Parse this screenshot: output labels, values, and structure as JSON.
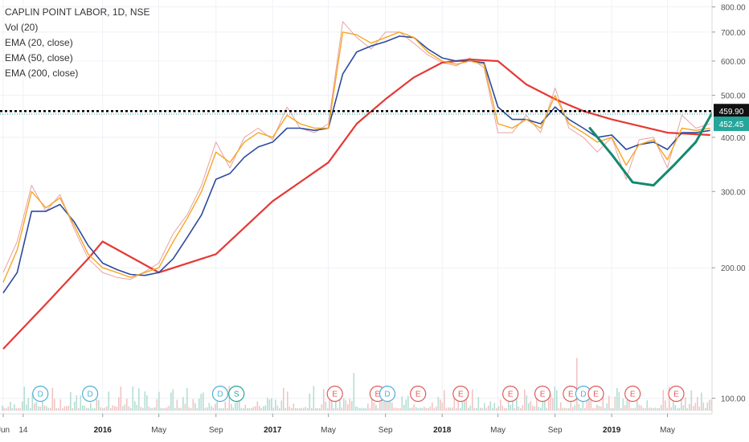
{
  "legend": {
    "title": "CAPLIN POINT LABOR, 1D, NSE",
    "items": [
      "Vol (20)",
      "EMA (20, close)",
      "EMA (50, close)",
      "EMA (200, close)"
    ]
  },
  "colors": {
    "price": "#e8a3a3",
    "ema20": "#f5a623",
    "ema50": "#2c4a9e",
    "ema200": "#e53935",
    "cup": "#14896e",
    "grid": "#eef1f6",
    "volume": "#f1c4c4",
    "volume_up": "#b6ddd3",
    "resistance": "#000000",
    "last_price": "#26a69a",
    "d_marker": "#4fb0d8",
    "s_marker": "#26a69a",
    "e_marker": "#e05a5a"
  },
  "chart_data": {
    "type": "line",
    "y_scale": "log",
    "ylim": [
      92,
      830
    ],
    "y_ticks": [
      "800.00",
      "700.00",
      "600.00",
      "500.00",
      "400.00",
      "300.00",
      "200.00",
      "100.00"
    ],
    "y_tick_values": [
      800,
      700,
      600,
      500,
      400,
      300,
      200,
      100
    ],
    "x_labels": [
      "Jun",
      "14",
      "2016",
      "May",
      "Sep",
      "2017",
      "May",
      "Sep",
      "2018",
      "May",
      "Sep",
      "2019",
      "May"
    ],
    "x_label_dates": [
      "2015-06-01",
      "2015-07-14",
      "2016-01-01",
      "2016-05-01",
      "2016-09-01",
      "2017-01-01",
      "2017-05-01",
      "2017-09-01",
      "2018-01-01",
      "2018-05-01",
      "2018-09-01",
      "2019-01-01",
      "2019-05-01"
    ],
    "x_bold": [
      false,
      false,
      true,
      false,
      false,
      true,
      false,
      false,
      true,
      false,
      false,
      true,
      false
    ],
    "x_range": [
      "2015-05-25",
      "2019-08-05"
    ],
    "resistance_level": 459.9,
    "last_price": 452.45,
    "resistance_label": "459.90",
    "last_price_label": "452.45",
    "series": [
      {
        "name": "EMA (20, close)",
        "key": "ema20",
        "x": [
          "2015-06-01",
          "2015-07-01",
          "2015-08-01",
          "2015-09-01",
          "2015-10-01",
          "2015-11-01",
          "2015-12-01",
          "2016-01-01",
          "2016-02-01",
          "2016-03-01",
          "2016-04-01",
          "2016-05-01",
          "2016-06-01",
          "2016-07-01",
          "2016-08-01",
          "2016-09-01",
          "2016-10-01",
          "2016-11-01",
          "2016-12-01",
          "2017-01-01",
          "2017-02-01",
          "2017-03-01",
          "2017-04-01",
          "2017-05-01",
          "2017-06-01",
          "2017-07-01",
          "2017-08-01",
          "2017-09-01",
          "2017-10-01",
          "2017-11-01",
          "2017-12-01",
          "2018-01-01",
          "2018-02-01",
          "2018-03-01",
          "2018-04-01",
          "2018-05-01",
          "2018-06-01",
          "2018-07-01",
          "2018-08-01",
          "2018-09-01",
          "2018-10-01",
          "2018-11-01",
          "2018-12-01",
          "2019-01-01",
          "2019-02-01",
          "2019-03-01",
          "2019-04-01",
          "2019-05-01",
          "2019-06-01",
          "2019-07-01",
          "2019-08-01"
        ],
        "y": [
          185,
          220,
          300,
          275,
          290,
          250,
          215,
          200,
          195,
          190,
          195,
          200,
          230,
          260,
          300,
          370,
          350,
          390,
          410,
          400,
          450,
          430,
          420,
          420,
          700,
          690,
          660,
          680,
          700,
          680,
          630,
          600,
          590,
          600,
          590,
          430,
          420,
          440,
          420,
          500,
          430,
          410,
          390,
          400,
          345,
          385,
          395,
          355,
          420,
          415,
          420
        ]
      },
      {
        "name": "EMA (50, close)",
        "key": "ema50",
        "x": [
          "2015-06-01",
          "2015-07-01",
          "2015-08-01",
          "2015-09-01",
          "2015-10-01",
          "2015-11-01",
          "2015-12-01",
          "2016-01-01",
          "2016-02-01",
          "2016-03-01",
          "2016-04-01",
          "2016-05-01",
          "2016-06-01",
          "2016-07-01",
          "2016-08-01",
          "2016-09-01",
          "2016-10-01",
          "2016-11-01",
          "2016-12-01",
          "2017-01-01",
          "2017-02-01",
          "2017-03-01",
          "2017-04-01",
          "2017-05-01",
          "2017-06-01",
          "2017-07-01",
          "2017-08-01",
          "2017-09-01",
          "2017-10-01",
          "2017-11-01",
          "2017-12-01",
          "2018-01-01",
          "2018-02-01",
          "2018-03-01",
          "2018-04-01",
          "2018-05-01",
          "2018-06-01",
          "2018-07-01",
          "2018-08-01",
          "2018-09-01",
          "2018-10-01",
          "2018-11-01",
          "2018-12-01",
          "2019-01-01",
          "2019-02-01",
          "2019-03-01",
          "2019-04-01",
          "2019-05-01",
          "2019-06-01",
          "2019-07-01",
          "2019-08-01"
        ],
        "y": [
          175,
          195,
          270,
          270,
          280,
          255,
          225,
          205,
          198,
          193,
          192,
          195,
          210,
          235,
          265,
          320,
          330,
          360,
          380,
          390,
          420,
          420,
          415,
          420,
          560,
          630,
          650,
          665,
          685,
          680,
          640,
          610,
          600,
          600,
          595,
          470,
          440,
          440,
          430,
          470,
          440,
          420,
          400,
          405,
          375,
          385,
          390,
          375,
          410,
          410,
          415
        ]
      },
      {
        "name": "EMA (200, close)",
        "key": "ema200",
        "x": [
          "2015-06-01",
          "2015-09-01",
          "2015-12-01",
          "2016-01-01",
          "2016-05-01",
          "2016-09-01",
          "2017-01-01",
          "2017-05-01",
          "2017-07-01",
          "2017-09-01",
          "2017-11-01",
          "2018-01-01",
          "2018-03-01",
          "2018-05-01",
          "2018-07-01",
          "2018-09-01",
          "2018-11-01",
          "2019-01-01",
          "2019-03-01",
          "2019-05-01",
          "2019-08-01"
        ],
        "y": [
          130,
          165,
          210,
          230,
          195,
          215,
          285,
          350,
          430,
          490,
          550,
          595,
          605,
          600,
          530,
          490,
          460,
          440,
          425,
          410,
          405
        ]
      },
      {
        "name": "Price",
        "key": "price",
        "x": [
          "2015-06-01",
          "2015-07-01",
          "2015-08-01",
          "2015-09-01",
          "2015-10-01",
          "2015-11-01",
          "2015-12-01",
          "2016-01-01",
          "2016-02-01",
          "2016-03-01",
          "2016-04-01",
          "2016-05-01",
          "2016-06-01",
          "2016-07-01",
          "2016-08-01",
          "2016-09-01",
          "2016-10-01",
          "2016-11-01",
          "2016-12-01",
          "2017-01-01",
          "2017-02-01",
          "2017-03-01",
          "2017-04-01",
          "2017-05-01",
          "2017-06-01",
          "2017-07-01",
          "2017-08-01",
          "2017-09-01",
          "2017-10-01",
          "2017-11-01",
          "2017-12-01",
          "2018-01-01",
          "2018-02-01",
          "2018-03-01",
          "2018-04-01",
          "2018-05-01",
          "2018-06-01",
          "2018-07-01",
          "2018-08-01",
          "2018-09-01",
          "2018-10-01",
          "2018-11-01",
          "2018-12-01",
          "2019-01-01",
          "2019-02-01",
          "2019-03-01",
          "2019-04-01",
          "2019-05-01",
          "2019-06-01",
          "2019-07-01",
          "2019-08-01"
        ],
        "y": [
          195,
          230,
          310,
          270,
          295,
          245,
          210,
          195,
          190,
          188,
          196,
          205,
          240,
          265,
          310,
          390,
          340,
          400,
          420,
          395,
          470,
          420,
          410,
          430,
          740,
          680,
          640,
          700,
          700,
          660,
          620,
          595,
          585,
          610,
          580,
          410,
          410,
          450,
          410,
          520,
          420,
          400,
          370,
          400,
          320,
          395,
          400,
          340,
          450,
          420,
          430
        ]
      }
    ],
    "cup_curve": {
      "x": [
        "2018-11-15",
        "2019-01-01",
        "2019-02-15",
        "2019-04-01",
        "2019-05-15",
        "2019-07-01",
        "2019-08-05"
      ],
      "y": [
        420,
        365,
        315,
        310,
        345,
        390,
        455
      ]
    },
    "markers": [
      {
        "label": "D",
        "date": "2015-08-20",
        "type": "d"
      },
      {
        "label": "D",
        "date": "2015-12-05",
        "type": "d"
      },
      {
        "label": "D",
        "date": "2016-09-10",
        "type": "d"
      },
      {
        "label": "S",
        "date": "2016-10-15",
        "type": "s"
      },
      {
        "label": "E",
        "date": "2017-05-15",
        "type": "e"
      },
      {
        "label": "E",
        "date": "2017-08-15",
        "type": "e"
      },
      {
        "label": "D",
        "date": "2017-09-05",
        "type": "d"
      },
      {
        "label": "E",
        "date": "2017-11-10",
        "type": "e"
      },
      {
        "label": "E",
        "date": "2018-02-10",
        "type": "e"
      },
      {
        "label": "E",
        "date": "2018-05-28",
        "type": "e"
      },
      {
        "label": "E",
        "date": "2018-08-05",
        "type": "e"
      },
      {
        "label": "E",
        "date": "2018-10-05",
        "type": "e"
      },
      {
        "label": "D",
        "date": "2018-11-01",
        "type": "d"
      },
      {
        "label": "E",
        "date": "2018-11-28",
        "type": "e"
      },
      {
        "label": "E",
        "date": "2019-02-15",
        "type": "e"
      },
      {
        "label": "E",
        "date": "2019-05-20",
        "type": "e"
      }
    ]
  }
}
